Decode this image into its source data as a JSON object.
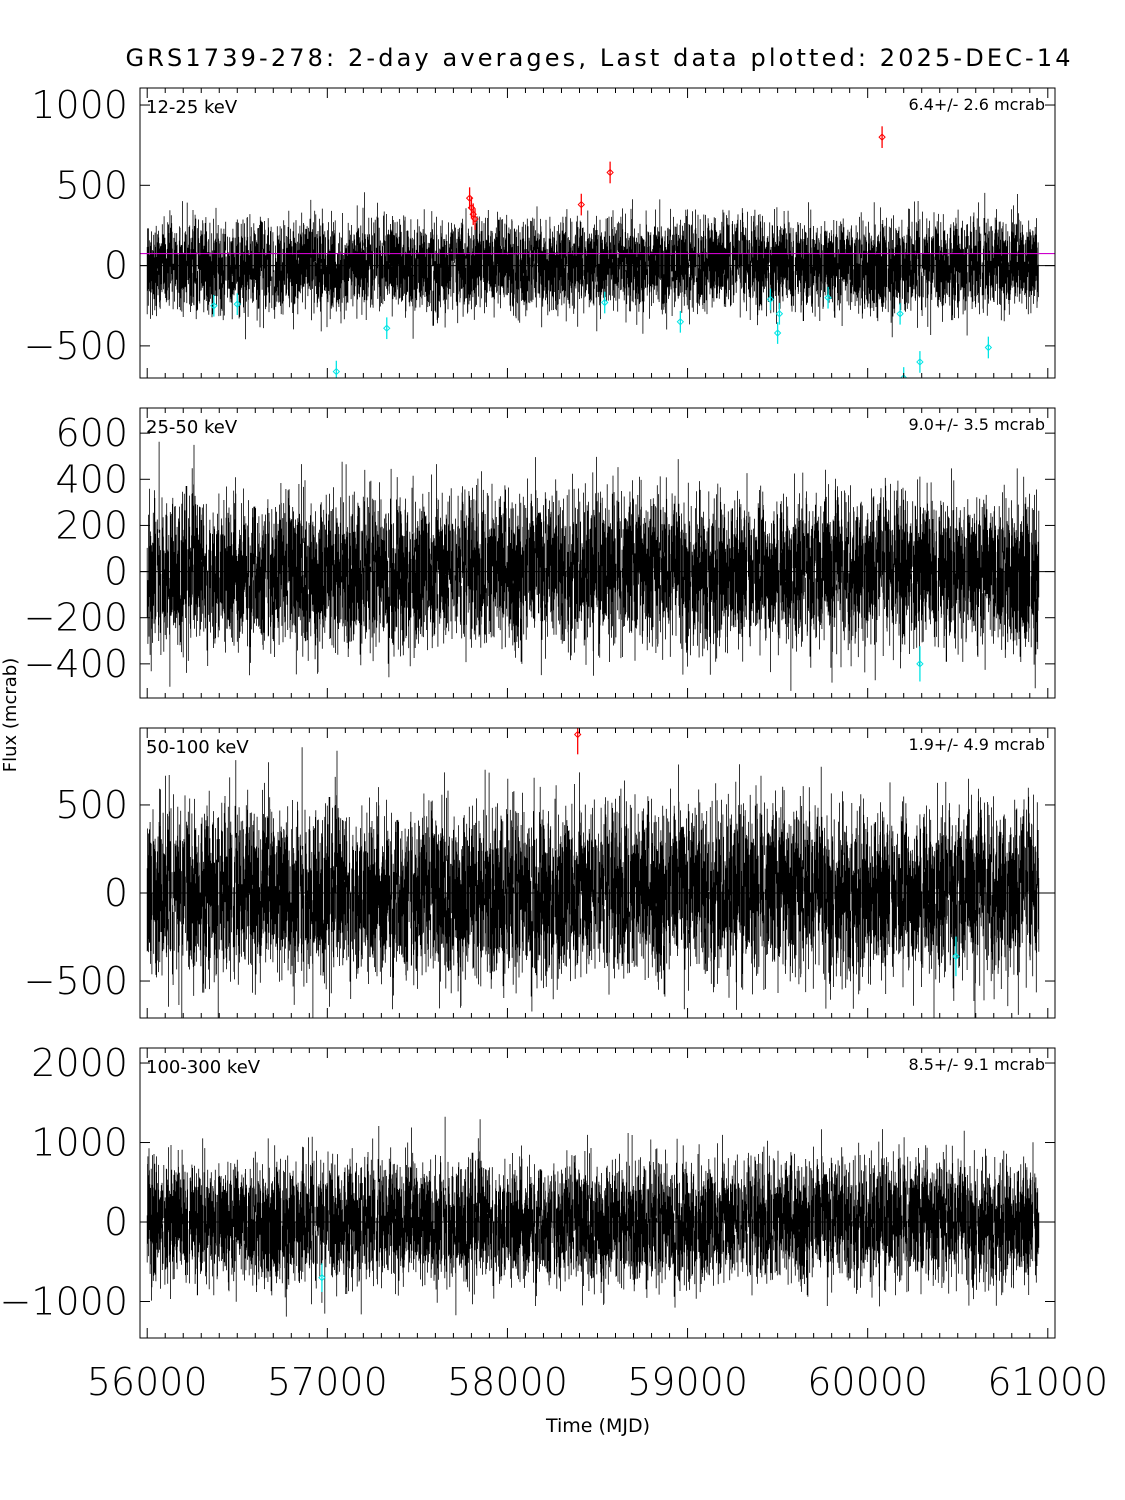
{
  "chart_data": [
    {
      "type": "scatter",
      "title": "GRS1739-278:  2-day averages,  Last data plotted: 2025-DEC-14",
      "xlabel": "Time (MJD)",
      "ylabel": "Flux (mcrab)",
      "xlim": [
        55960,
        61040
      ],
      "xticks": [
        "56000",
        "57000",
        "58000",
        "59000",
        "60000",
        "61000"
      ],
      "panels": [
        {
          "band": "12-25 keV",
          "mean_label": "6.4+/-     2.6 mcrab",
          "ylim": [
            -700,
            1106
          ],
          "yticks": [
            -500,
            0,
            500,
            1000
          ],
          "ref_line": 75,
          "noise_sd": 150,
          "red_points": [
            [
              57790,
              420
            ],
            [
              57800,
              360
            ],
            [
              57810,
              320
            ],
            [
              57820,
              290
            ],
            [
              58410,
              380
            ],
            [
              58570,
              580
            ],
            [
              60080,
              800
            ]
          ],
          "cyan_points": [
            [
              56370,
              -250
            ],
            [
              56500,
              -240
            ],
            [
              57050,
              -660
            ],
            [
              57330,
              -390
            ],
            [
              58540,
              -230
            ],
            [
              58960,
              -350
            ],
            [
              59460,
              -210
            ],
            [
              59500,
              -420
            ],
            [
              59510,
              -300
            ],
            [
              59780,
              -200
            ],
            [
              60180,
              -300
            ],
            [
              60200,
              -700
            ],
            [
              60290,
              -600
            ],
            [
              60670,
              -510
            ]
          ]
        },
        {
          "band": "25-50 keV",
          "mean_label": "9.0+/-     3.5 mcrab",
          "ylim": [
            -548,
            709
          ],
          "yticks": [
            -400,
            -200,
            0,
            200,
            400,
            600
          ],
          "noise_sd": 170,
          "red_points": [],
          "cyan_points": [
            [
              60290,
              -400
            ]
          ]
        },
        {
          "band": "50-100 keV",
          "mean_label": "1.9+/-     4.9 mcrab",
          "ylim": [
            -710,
            937
          ],
          "yticks": [
            -500,
            0,
            500
          ],
          "noise_sd": 250,
          "red_points": [
            [
              58390,
              900
            ]
          ],
          "cyan_points": [
            [
              60490,
              -360
            ]
          ]
        },
        {
          "band": "100-300 keV",
          "mean_label": "8.5+/-     9.1 mcrab",
          "ylim": [
            -1459,
            2189
          ],
          "yticks": [
            -1000,
            0,
            1000,
            2000
          ],
          "noise_sd": 400,
          "red_points": [],
          "cyan_points": [
            [
              56970,
              -700
            ]
          ]
        }
      ],
      "colors": {
        "data": "#000000",
        "high": "#ff0000",
        "low": "#00e5e5",
        "ref_line": "#cc00cc"
      },
      "grid": false
    }
  ]
}
